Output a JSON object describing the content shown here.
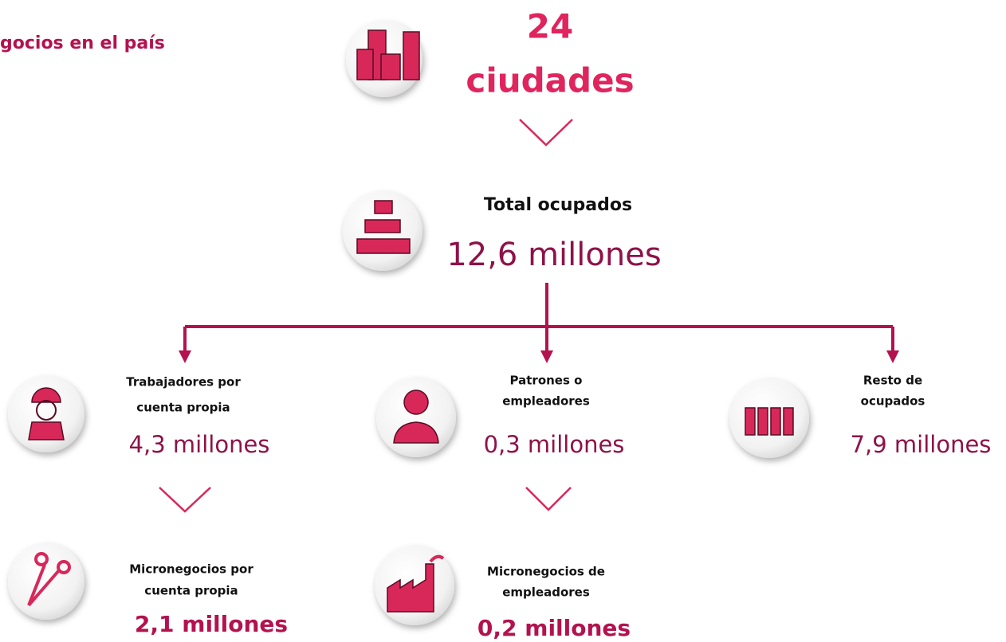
{
  "header": {
    "title": "gocios en el país"
  },
  "top": {
    "value": "24",
    "label": "ciudades"
  },
  "total": {
    "label": "Total ocupados",
    "value": "12,6 millones"
  },
  "nodes": [
    {
      "label": [
        "Trabajadores por",
        "cuenta propia"
      ],
      "value": "4,3 millones"
    },
    {
      "label": [
        "Patrones o",
        "empleadores"
      ],
      "value": "0,3 millones"
    },
    {
      "label": [
        "Resto de",
        "ocupados"
      ],
      "value": "7,9 millones"
    },
    {
      "label": [
        "Micronegocios por",
        "cuenta propia"
      ],
      "value": "2,1 millones"
    },
    {
      "label": [
        "Micronegocios de",
        "empleadores"
      ],
      "value": "0,2 millones"
    }
  ]
}
